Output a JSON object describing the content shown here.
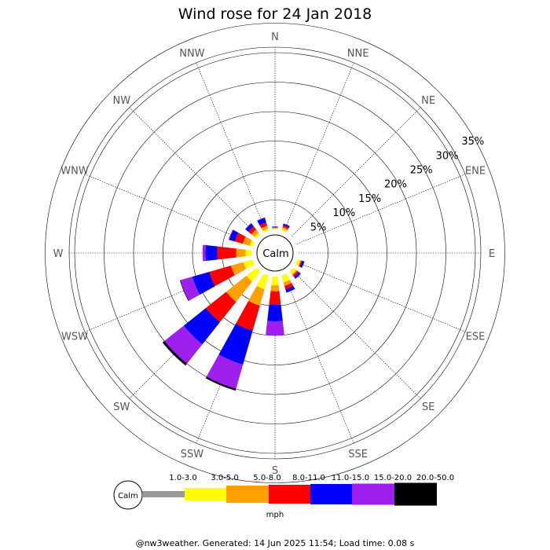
{
  "chart_data": {
    "type": "windrose",
    "title": "Wind rose for 24 Jan 2018",
    "center_label": "Calm",
    "directions": [
      "N",
      "NNE",
      "NE",
      "ENE",
      "E",
      "ESE",
      "SE",
      "SSE",
      "S",
      "SSW",
      "SW",
      "WSW",
      "W",
      "WNW",
      "NW",
      "NNW"
    ],
    "radial_ticks": [
      "5%",
      "10%",
      "15%",
      "20%",
      "25%",
      "30%",
      "35%"
    ],
    "radial_values": [
      5,
      10,
      15,
      20,
      25,
      30,
      35
    ],
    "speed_bins": [
      "1.0-3.0",
      "3.0-5.0",
      "5.0-8.0",
      "8.0-11.0",
      "11.0-15.0",
      "15.0-20.0",
      "20.0-50.0"
    ],
    "speed_unit": "mph",
    "colors": [
      "#999999",
      "#ffff00",
      "#ff9f00",
      "#ff0000",
      "#0000ff",
      "#9f1fef",
      "#000000"
    ],
    "series_cumulative_pct": {
      "N": [
        0,
        0.2,
        0.3,
        0.4,
        0.5,
        0.5,
        0.5
      ],
      "NNE": [
        0,
        0.3,
        0.6,
        0.9,
        1.2,
        1.2,
        1.2
      ],
      "NE": [
        0,
        0,
        0,
        0,
        0,
        0,
        0
      ],
      "ENE": [
        0,
        0,
        0,
        0,
        0,
        0,
        0
      ],
      "E": [
        0,
        0,
        0,
        0,
        0,
        0,
        0
      ],
      "ESE": [
        0,
        0.5,
        0.6,
        0.8,
        1.2,
        1.2,
        1.2
      ],
      "SE": [
        0,
        0.6,
        0.8,
        1.2,
        1.6,
        1.6,
        1.6
      ],
      "SSE": [
        0,
        1.2,
        1.8,
        2.4,
        3.0,
        3.0,
        3.0
      ],
      "S": [
        0,
        1.5,
        2.5,
        4.8,
        7.6,
        10.0,
        10.0
      ],
      "SSW": [
        0,
        2.4,
        5.3,
        9.7,
        15.7,
        20.0,
        20.3
      ],
      "SW": [
        0,
        2.2,
        6.6,
        11.0,
        15.8,
        20.0,
        20.4
      ],
      "WSW": [
        0,
        1.6,
        3.8,
        7.6,
        10.6,
        12.7,
        12.8
      ],
      "W": [
        0,
        1.0,
        2.6,
        5.8,
        7.8,
        8.3,
        8.3
      ],
      "WNW": [
        0,
        0.5,
        1.7,
        3.1,
        4.1,
        4.2,
        4.2
      ],
      "NW": [
        0,
        0.4,
        1.1,
        1.8,
        2.4,
        2.5,
        2.5
      ],
      "NNW": [
        0,
        0.3,
        0.8,
        1.4,
        2.2,
        2.3,
        2.3
      ]
    }
  },
  "footer": "@nw3weather. Generated: 14 Jun 2025 11:54; Load time: 0.08 s"
}
